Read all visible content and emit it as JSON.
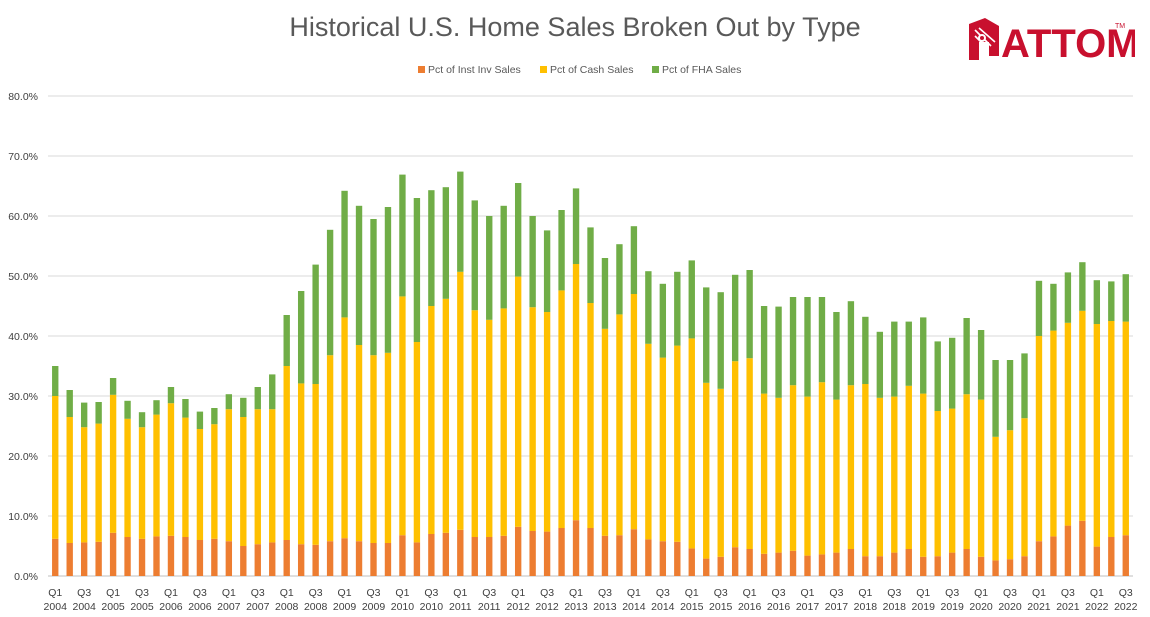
{
  "title": "Historical U.S. Home Sales Broken Out by Type",
  "logo": {
    "text": "ATTOM",
    "trademark": "TM",
    "icon": "house-pin-logo-icon",
    "color": "#c8102e"
  },
  "chart_data": {
    "type": "bar",
    "stacked": true,
    "legend_position": "top",
    "grid": true,
    "ylim": [
      0,
      80
    ],
    "y_ticks": [
      "0.0%",
      "10.0%",
      "20.0%",
      "30.0%",
      "40.0%",
      "50.0%",
      "60.0%",
      "70.0%",
      "80.0%"
    ],
    "x_tick_labels": [
      [
        "Q1",
        "2004"
      ],
      [
        "Q3",
        "2004"
      ],
      [
        "Q1",
        "2005"
      ],
      [
        "Q3",
        "2005"
      ],
      [
        "Q1",
        "2006"
      ],
      [
        "Q3",
        "2006"
      ],
      [
        "Q1",
        "2007"
      ],
      [
        "Q3",
        "2007"
      ],
      [
        "Q1",
        "2008"
      ],
      [
        "Q3",
        "2008"
      ],
      [
        "Q1",
        "2009"
      ],
      [
        "Q3",
        "2009"
      ],
      [
        "Q1",
        "2010"
      ],
      [
        "Q3",
        "2010"
      ],
      [
        "Q1",
        "2011"
      ],
      [
        "Q3",
        "2011"
      ],
      [
        "Q1",
        "2012"
      ],
      [
        "Q3",
        "2012"
      ],
      [
        "Q1",
        "2013"
      ],
      [
        "Q3",
        "2013"
      ],
      [
        "Q1",
        "2014"
      ],
      [
        "Q3",
        "2014"
      ],
      [
        "Q1",
        "2015"
      ],
      [
        "Q3",
        "2015"
      ],
      [
        "Q1",
        "2016"
      ],
      [
        "Q3",
        "2016"
      ],
      [
        "Q1",
        "2017"
      ],
      [
        "Q3",
        "2017"
      ],
      [
        "Q1",
        "2018"
      ],
      [
        "Q3",
        "2018"
      ],
      [
        "Q1",
        "2019"
      ],
      [
        "Q3",
        "2019"
      ],
      [
        "Q1",
        "2020"
      ],
      [
        "Q3",
        "2020"
      ],
      [
        "Q1",
        "2021"
      ],
      [
        "Q3",
        "2021"
      ],
      [
        "Q1",
        "2022"
      ],
      [
        "Q3",
        "2022"
      ]
    ],
    "series": [
      {
        "name": "Pct of Inst Inv Sales",
        "color": "#ed7d31",
        "values": [
          6.2,
          5.5,
          5.6,
          5.7,
          7.2,
          6.5,
          6.2,
          6.6,
          6.7,
          6.5,
          6.0,
          6.2,
          5.8,
          5.0,
          5.3,
          5.6,
          6.0,
          5.3,
          5.2,
          5.8,
          6.3,
          5.8,
          5.5,
          5.5,
          6.8,
          5.6,
          7.0,
          7.2,
          7.7,
          6.5,
          6.5,
          6.7,
          8.2,
          7.5,
          7.4,
          8.0,
          9.3,
          8.0,
          6.7,
          6.8,
          7.8,
          6.1,
          5.8,
          5.7,
          4.6,
          2.9,
          3.2,
          4.8,
          4.5,
          3.7,
          3.9,
          4.2,
          3.4,
          3.6,
          3.9,
          4.5,
          3.3,
          3.3,
          3.9,
          4.5,
          3.2,
          3.3,
          3.9,
          4.5,
          3.2,
          2.6,
          2.8,
          3.3,
          5.8,
          6.6,
          8.4,
          9.2,
          4.9,
          6.5,
          6.8
        ]
      },
      {
        "name": "Pct of Cash Sales",
        "color": "#ffc000",
        "values": [
          23.8,
          21.0,
          19.2,
          19.7,
          23.0,
          19.7,
          18.6,
          20.3,
          22.1,
          19.9,
          18.5,
          19.1,
          22.0,
          21.5,
          22.5,
          22.2,
          29.0,
          26.8,
          26.8,
          31.0,
          36.8,
          32.7,
          31.3,
          31.7,
          39.8,
          33.4,
          38.0,
          39.0,
          43.0,
          37.8,
          36.2,
          37.9,
          41.7,
          37.3,
          36.6,
          39.6,
          42.7,
          37.5,
          34.5,
          36.8,
          39.2,
          32.6,
          30.6,
          32.7,
          35.0,
          29.3,
          28.0,
          31.0,
          31.8,
          26.7,
          25.8,
          27.6,
          26.5,
          28.7,
          25.5,
          27.3,
          28.7,
          26.4,
          26.0,
          27.2,
          27.2,
          24.2,
          24.0,
          25.8,
          26.2,
          20.6,
          21.5,
          23.0,
          34.2,
          34.3,
          33.8,
          35.0,
          37.1,
          36.0,
          35.6
        ]
      },
      {
        "name": "Pct of FHA Sales",
        "color": "#70ad47",
        "values": [
          5.0,
          4.5,
          4.1,
          3.6,
          2.8,
          3.0,
          2.5,
          2.4,
          2.7,
          3.1,
          2.9,
          2.7,
          2.5,
          3.2,
          3.7,
          5.8,
          8.5,
          15.4,
          19.9,
          20.9,
          21.1,
          23.2,
          22.7,
          24.3,
          20.3,
          24.0,
          19.3,
          18.6,
          16.7,
          18.3,
          17.3,
          17.1,
          15.6,
          15.2,
          13.6,
          13.4,
          12.6,
          12.6,
          11.8,
          11.7,
          11.3,
          12.1,
          12.3,
          12.3,
          13.0,
          15.9,
          16.1,
          14.4,
          14.7,
          14.6,
          15.2,
          14.7,
          16.6,
          14.2,
          14.6,
          14.0,
          11.2,
          11.0,
          12.5,
          10.7,
          12.7,
          11.6,
          11.8,
          12.7,
          11.6,
          12.8,
          11.7,
          10.8,
          9.2,
          7.8,
          8.4,
          8.1,
          7.3,
          6.6,
          7.9
        ]
      }
    ]
  }
}
